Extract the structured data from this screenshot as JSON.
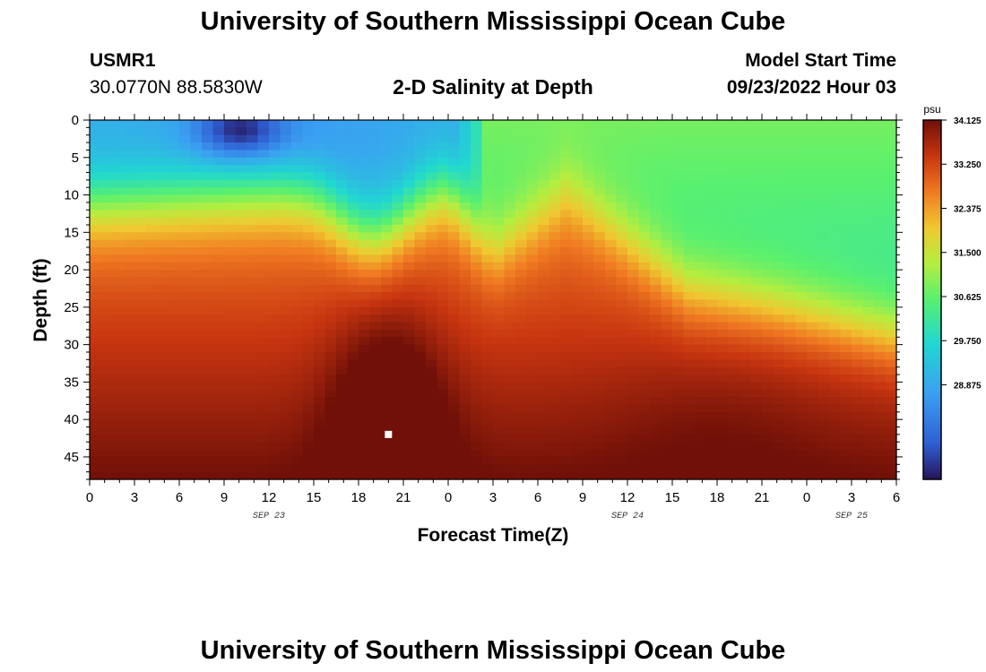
{
  "header": {
    "title": "University of Southern Mississippi Ocean Cube",
    "station_id": "USMR1",
    "coordinates": "30.0770N  88.5830W",
    "plot_title": "2-D Salinity at Depth",
    "model_start_label": "Model Start Time",
    "model_start_value": "09/23/2022 Hour 03"
  },
  "footer": {
    "title": "University of Southern Mississippi Ocean Cube"
  },
  "chart_data": {
    "type": "heatmap",
    "title": "2-D Salinity at Depth",
    "xlabel": "Forecast Time(Z)",
    "ylabel": "Depth (ft)",
    "x_ticks": [
      "0",
      "3",
      "6",
      "9",
      "12",
      "15",
      "18",
      "21",
      "0",
      "3",
      "6",
      "9",
      "12",
      "15",
      "18",
      "21",
      "0",
      "3",
      "6"
    ],
    "x_range_hours": [
      0,
      54
    ],
    "date_labels": [
      {
        "label": "SEP 23",
        "hour": 12
      },
      {
        "label": "SEP 24",
        "hour": 36
      },
      {
        "label": "SEP 25",
        "hour": 51
      }
    ],
    "y_ticks": [
      "0",
      "5",
      "10",
      "15",
      "20",
      "25",
      "30",
      "35",
      "40",
      "45"
    ],
    "y_range": [
      0,
      48
    ],
    "y_inverted": true,
    "colorbar": {
      "unit": "psu",
      "min": 27.0,
      "max": 34.125,
      "labels": [
        "34.125",
        "33.250",
        "32.375",
        "31.500",
        "30.625",
        "29.750",
        "28.875"
      ]
    },
    "marker": {
      "hour": 20,
      "depth": 42
    },
    "grid": false
  }
}
